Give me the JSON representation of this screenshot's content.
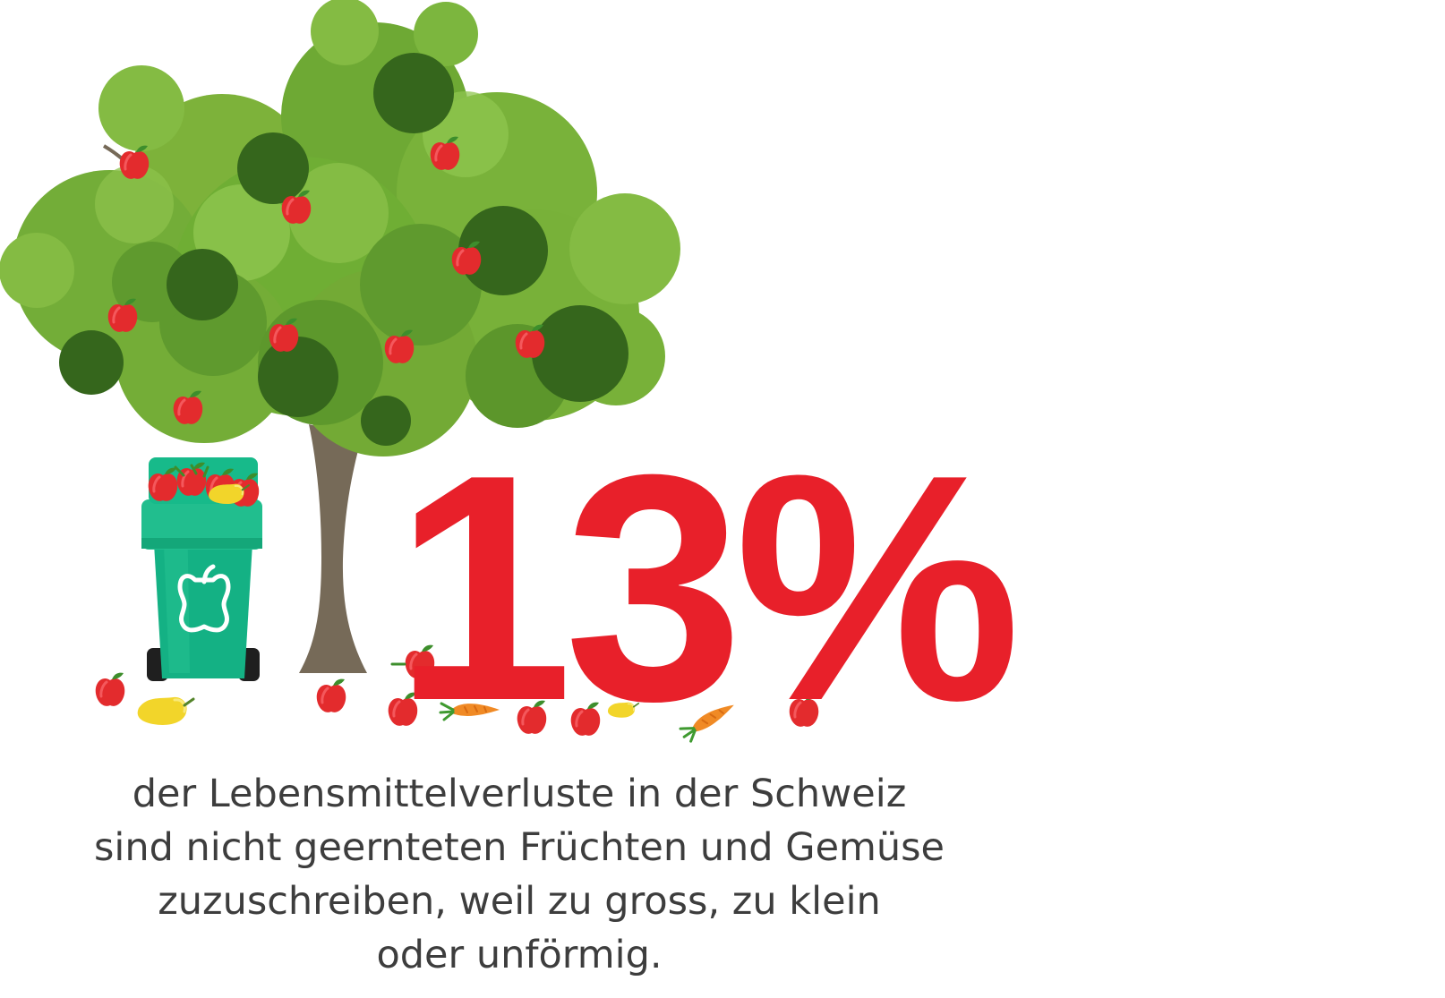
{
  "infographic": {
    "statistic": "13%",
    "statistic_value_percent": 13,
    "accent_color": "#e8202a",
    "text_color": "#3d3d3d",
    "caption_lines": [
      "der Lebensmittelverluste in der Schweiz",
      "sind nicht geernteten Früchten und Gemüse",
      "zuzuschreiben, weil zu gross, zu klein",
      "oder unförmig."
    ]
  },
  "illustration": {
    "tree_icon": "apple-tree-icon",
    "bin_icon": "compost-bin-icon",
    "bin_symbol_icon": "apple-core-icon",
    "produce_icons": [
      "apple-icon",
      "pear-icon",
      "carrot-icon"
    ],
    "colors": {
      "leaf_light": "#7db23a",
      "leaf_mid": "#5f9a2e",
      "leaf_dark": "#35661c",
      "trunk": "#766a58",
      "bin_green": "#1fb486",
      "apple_red": "#e32b2d",
      "pear_yellow": "#f2d52a",
      "carrot_orange": "#f08a25"
    }
  }
}
